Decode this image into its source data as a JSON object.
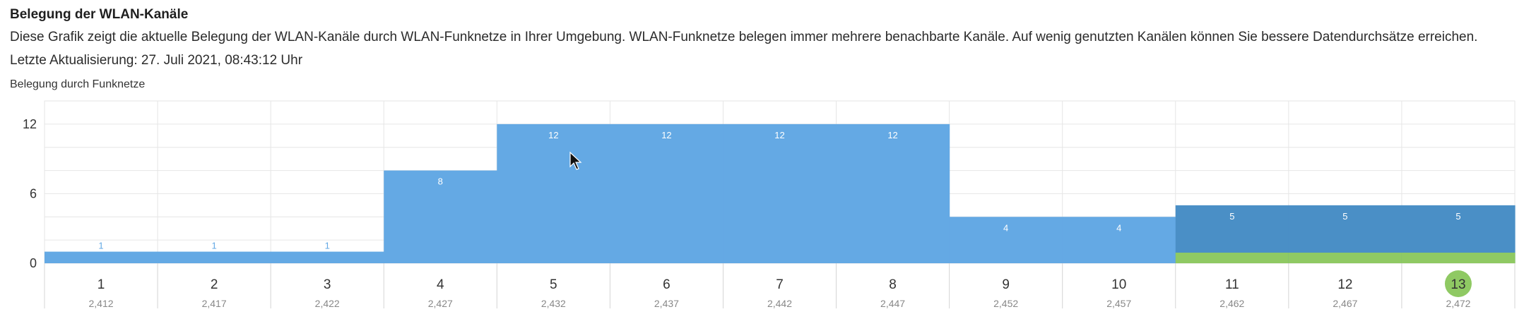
{
  "header": {
    "title": "Belegung der WLAN-Kanäle",
    "description": "Diese Grafik zeigt die aktuelle Belegung der WLAN-Kanäle durch WLAN-Funknetze in Ihrer Umgebung. WLAN-Funknetze belegen immer mehrere benachbarte Kanäle. Auf wenig genutzten Kanälen können Sie bessere Datendurchsätze erreichen.",
    "last_update": "Letzte Aktualisierung: 27. Juli 2021, 08:43:12 Uhr",
    "chart_caption": "Belegung durch Funknetze"
  },
  "colors": {
    "bar": "#64a9e4",
    "bar_highlight": "#4a8fc6",
    "own_network": "#8fc963",
    "grid": "#e6e6e6"
  },
  "chart_data": {
    "type": "bar",
    "title": "Belegung durch Funknetze",
    "xlabel": "",
    "ylabel": "",
    "ylim": [
      0,
      14
    ],
    "yticks": [
      0,
      6,
      12
    ],
    "categories": [
      "1",
      "2",
      "3",
      "4",
      "5",
      "6",
      "7",
      "8",
      "9",
      "10",
      "11",
      "12",
      "13"
    ],
    "frequencies": [
      "2,412",
      "2,417",
      "2,422",
      "2,427",
      "2,432",
      "2,437",
      "2,442",
      "2,447",
      "2,452",
      "2,457",
      "2,462",
      "2,467",
      "2,472"
    ],
    "values": [
      1,
      1,
      1,
      8,
      12,
      12,
      12,
      12,
      4,
      4,
      5,
      5,
      5
    ],
    "highlighted_channels": [
      "11",
      "12",
      "13"
    ],
    "selected_channel": "13",
    "grid": true
  }
}
